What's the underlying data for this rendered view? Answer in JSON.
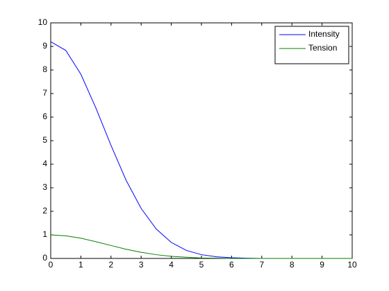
{
  "chart_data": {
    "type": "line",
    "x": [
      0,
      0.5,
      1,
      1.5,
      2,
      2.5,
      3,
      3.5,
      4,
      4.5,
      5,
      5.5,
      6,
      6.5,
      7,
      7.5,
      8,
      8.5,
      9,
      9.5,
      10
    ],
    "series": [
      {
        "name": "Intensity",
        "color": "#0000ff",
        "values": [
          9.2,
          8.83,
          7.82,
          6.38,
          4.8,
          3.32,
          2.12,
          1.25,
          0.68,
          0.34,
          0.16,
          0.07,
          0.03,
          0.01,
          0,
          0,
          0,
          0,
          0,
          0,
          0
        ]
      },
      {
        "name": "Tension",
        "color": "#008000",
        "values": [
          1,
          0.96,
          0.86,
          0.71,
          0.55,
          0.39,
          0.26,
          0.16,
          0.09,
          0.05,
          0.02,
          0.01,
          0,
          0,
          0,
          0,
          0,
          0,
          0,
          0,
          0
        ]
      }
    ],
    "xlim": [
      0,
      10
    ],
    "ylim": [
      0,
      10
    ],
    "xticks": [
      0,
      1,
      2,
      3,
      4,
      5,
      6,
      7,
      8,
      9,
      10
    ],
    "yticks": [
      0,
      1,
      2,
      3,
      4,
      5,
      6,
      7,
      8,
      9,
      10
    ],
    "legend": "northeast"
  }
}
